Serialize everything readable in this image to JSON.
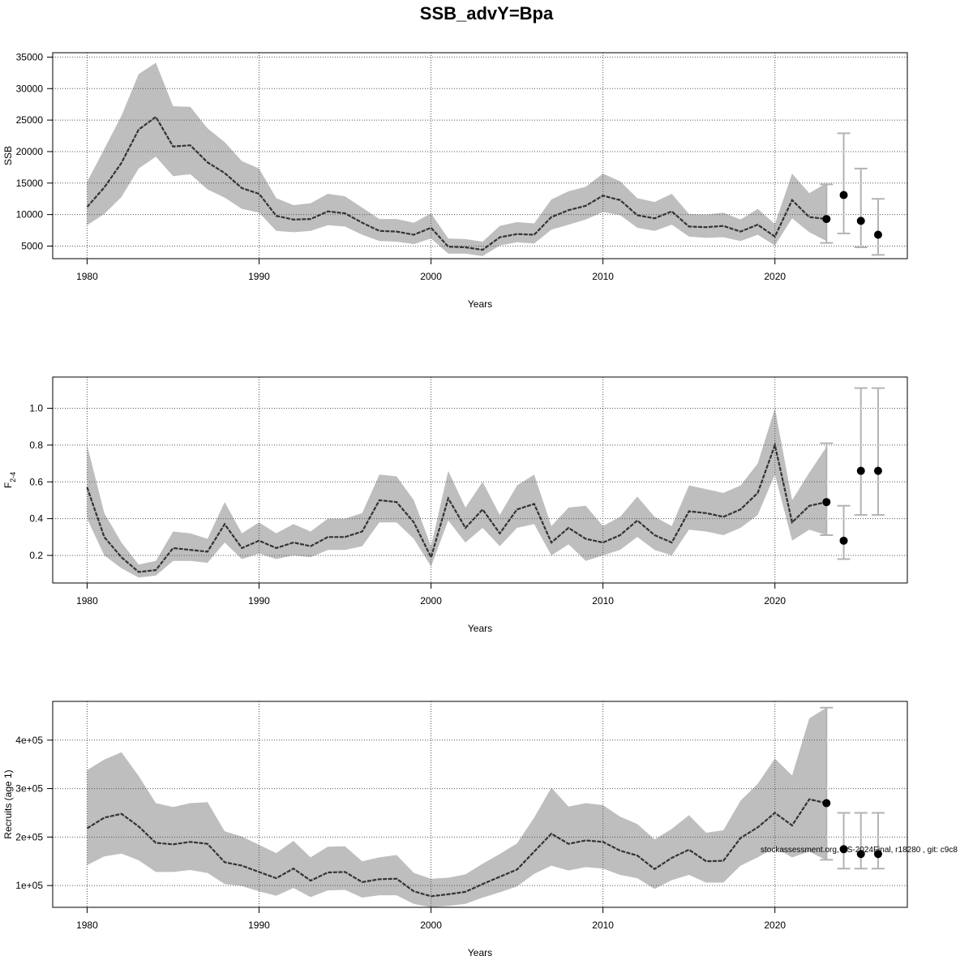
{
  "page_title": "SSB_advY=Bpa",
  "footnote": "stockassessment.org, NS-2024Final, r18280 , git: c9c8",
  "colors": {
    "band": "#bebebe",
    "line": "#333333",
    "errorbar": "#b3b3b3",
    "point": "#000000",
    "grid": "#555555"
  },
  "chart_data": [
    {
      "type": "line",
      "title": "SSB_advY=Bpa",
      "xlabel": "Years",
      "ylabel": "SSB",
      "xlim": [
        1978,
        2027.7
      ],
      "ylim": [
        3000,
        35700
      ],
      "xticks": [
        1980,
        1990,
        2000,
        2010,
        2020
      ],
      "xtick_labels": [
        "1980",
        "1990",
        "2000",
        "2010",
        "2020"
      ],
      "yticks": [
        5000,
        10000,
        15000,
        20000,
        25000,
        30000,
        35000
      ],
      "ytick_labels": [
        "5000",
        "10000",
        "15000",
        "20000",
        "25000",
        "30000",
        "35000"
      ],
      "grid": true,
      "series": [
        {
          "x": [
            1980,
            1981,
            1982,
            1983,
            1984,
            1985,
            1986,
            1987,
            1988,
            1989,
            1990,
            1991,
            1992,
            1993,
            1994,
            1995,
            1996,
            1997,
            1998,
            1999,
            2000,
            2001,
            2002,
            2003,
            2004,
            2005,
            2006,
            2007,
            2008,
            2009,
            2010,
            2011,
            2012,
            2013,
            2014,
            2015,
            2016,
            2017,
            2018,
            2019,
            2020,
            2021,
            2022,
            2023
          ],
          "y": [
            11200,
            14300,
            18200,
            23500,
            25500,
            20800,
            21000,
            18300,
            16600,
            14200,
            13300,
            9800,
            9200,
            9300,
            10500,
            10200,
            8700,
            7400,
            7300,
            6800,
            7900,
            4900,
            4800,
            4400,
            6400,
            6900,
            6800,
            9600,
            10700,
            11400,
            13000,
            12300,
            9900,
            9400,
            10500,
            8100,
            8000,
            8200,
            7300,
            8400,
            6500,
            12300,
            9600,
            9300
          ],
          "lower": [
            8300,
            10100,
            12800,
            17300,
            19200,
            16100,
            16400,
            14000,
            12700,
            10900,
            10300,
            7400,
            7200,
            7400,
            8300,
            8100,
            6800,
            5800,
            5700,
            5300,
            6200,
            3800,
            3800,
            3400,
            5100,
            5600,
            5400,
            7600,
            8400,
            9200,
            10400,
            9900,
            7900,
            7400,
            8400,
            6500,
            6300,
            6400,
            5800,
            6800,
            5100,
            9400,
            7200,
            5800
          ],
          "upper": [
            15200,
            20400,
            25700,
            32300,
            34100,
            27200,
            27100,
            23700,
            21500,
            18500,
            17300,
            12600,
            11500,
            11800,
            13300,
            12900,
            11100,
            9300,
            9300,
            8700,
            10200,
            6200,
            6100,
            5700,
            8200,
            8800,
            8600,
            12400,
            13700,
            14400,
            16500,
            15300,
            12600,
            12000,
            13300,
            10100,
            10000,
            10300,
            9200,
            10900,
            8500,
            16500,
            13400,
            15000
          ]
        }
      ],
      "forecast": {
        "x": [
          2024,
          2025,
          2026
        ],
        "y": [
          13100,
          9000,
          6800
        ],
        "lower": [
          7000,
          4800,
          3600
        ],
        "upper": [
          22900,
          17300,
          12500
        ]
      },
      "final_interval": {
        "x": 2023,
        "lower": 5500,
        "upper": 14800
      }
    },
    {
      "type": "line",
      "xlabel": "Years",
      "ylabel": "F",
      "ylabel_sub": "2-4",
      "xlim": [
        1978,
        2027.7
      ],
      "ylim": [
        0.05,
        1.17
      ],
      "xticks": [
        1980,
        1990,
        2000,
        2010,
        2020
      ],
      "xtick_labels": [
        "1980",
        "1990",
        "2000",
        "2010",
        "2020"
      ],
      "yticks": [
        0.2,
        0.4,
        0.6,
        0.8,
        1.0
      ],
      "ytick_labels": [
        "0.2",
        "0.4",
        "0.6",
        "0.8",
        "1.0"
      ],
      "grid": true,
      "series": [
        {
          "x": [
            1980,
            1981,
            1982,
            1983,
            1984,
            1985,
            1986,
            1987,
            1988,
            1989,
            1990,
            1991,
            1992,
            1993,
            1994,
            1995,
            1996,
            1997,
            1998,
            1999,
            2000,
            2001,
            2002,
            2003,
            2004,
            2005,
            2006,
            2007,
            2008,
            2009,
            2010,
            2011,
            2012,
            2013,
            2014,
            2015,
            2016,
            2017,
            2018,
            2019,
            2020,
            2021,
            2022,
            2023
          ],
          "y": [
            0.57,
            0.3,
            0.19,
            0.11,
            0.12,
            0.24,
            0.23,
            0.22,
            0.37,
            0.24,
            0.28,
            0.24,
            0.27,
            0.25,
            0.3,
            0.3,
            0.33,
            0.5,
            0.49,
            0.38,
            0.19,
            0.51,
            0.35,
            0.45,
            0.32,
            0.45,
            0.48,
            0.27,
            0.35,
            0.29,
            0.27,
            0.31,
            0.39,
            0.31,
            0.27,
            0.44,
            0.43,
            0.41,
            0.45,
            0.54,
            0.8,
            0.38,
            0.47,
            0.49
          ],
          "lower": [
            0.4,
            0.2,
            0.13,
            0.08,
            0.09,
            0.17,
            0.17,
            0.16,
            0.27,
            0.18,
            0.21,
            0.18,
            0.2,
            0.19,
            0.23,
            0.23,
            0.25,
            0.38,
            0.38,
            0.29,
            0.14,
            0.39,
            0.27,
            0.35,
            0.25,
            0.35,
            0.37,
            0.2,
            0.26,
            0.17,
            0.2,
            0.23,
            0.3,
            0.23,
            0.2,
            0.34,
            0.33,
            0.31,
            0.35,
            0.42,
            0.64,
            0.28,
            0.34,
            0.31
          ],
          "upper": [
            0.8,
            0.43,
            0.27,
            0.15,
            0.17,
            0.33,
            0.32,
            0.29,
            0.49,
            0.32,
            0.38,
            0.32,
            0.37,
            0.33,
            0.4,
            0.4,
            0.43,
            0.64,
            0.63,
            0.5,
            0.25,
            0.66,
            0.46,
            0.6,
            0.42,
            0.58,
            0.64,
            0.36,
            0.46,
            0.47,
            0.36,
            0.41,
            0.52,
            0.41,
            0.36,
            0.58,
            0.56,
            0.54,
            0.58,
            0.7,
            1.0,
            0.5,
            0.65,
            0.79
          ]
        }
      ],
      "forecast": {
        "x": [
          2024,
          2025,
          2026
        ],
        "y": [
          0.28,
          0.66,
          0.66
        ],
        "lower": [
          0.18,
          0.42,
          0.42
        ],
        "upper": [
          0.47,
          1.11,
          1.11
        ]
      },
      "final_interval": {
        "x": 2023,
        "lower": 0.31,
        "upper": 0.81
      }
    },
    {
      "type": "line",
      "xlabel": "Years",
      "ylabel": "Recruits (age 1)",
      "xlim": [
        1978,
        2027.7
      ],
      "ylim": [
        55000,
        480000
      ],
      "xticks": [
        1980,
        1990,
        2000,
        2010,
        2020
      ],
      "xtick_labels": [
        "1980",
        "1990",
        "2000",
        "2010",
        "2020"
      ],
      "yticks": [
        100000,
        200000,
        300000,
        400000
      ],
      "ytick_labels": [
        "1e+05",
        "2e+05",
        "3e+05",
        "4e+05"
      ],
      "grid": true,
      "series": [
        {
          "x": [
            1980,
            1981,
            1982,
            1983,
            1984,
            1985,
            1986,
            1987,
            1988,
            1989,
            1990,
            1991,
            1992,
            1993,
            1994,
            1995,
            1996,
            1997,
            1998,
            1999,
            2000,
            2001,
            2002,
            2003,
            2004,
            2005,
            2006,
            2007,
            2008,
            2009,
            2010,
            2011,
            2012,
            2013,
            2014,
            2015,
            2016,
            2017,
            2018,
            2019,
            2020,
            2021,
            2022,
            2023
          ],
          "y": [
            218000,
            240000,
            248000,
            222000,
            188000,
            185000,
            190000,
            186000,
            148000,
            141000,
            128000,
            115000,
            135000,
            110000,
            127000,
            128000,
            107000,
            113000,
            114000,
            88000,
            78000,
            82000,
            87000,
            103000,
            118000,
            133000,
            170000,
            207000,
            186000,
            193000,
            190000,
            172000,
            162000,
            134000,
            157000,
            174000,
            150000,
            151000,
            198000,
            220000,
            250000,
            224000,
            278000,
            270000
          ],
          "lower": [
            142000,
            160000,
            166000,
            152000,
            128000,
            128000,
            132000,
            126000,
            103000,
            99000,
            88000,
            79000,
            95000,
            76000,
            90000,
            91000,
            75000,
            80000,
            80000,
            62000,
            55000,
            58000,
            62000,
            75000,
            86000,
            98000,
            124000,
            141000,
            131000,
            138000,
            135000,
            122000,
            115000,
            93000,
            111000,
            122000,
            106000,
            106000,
            141000,
            158000,
            178000,
            158000,
            170000,
            152000
          ],
          "upper": [
            338000,
            360000,
            375000,
            326000,
            270000,
            262000,
            270000,
            272000,
            212000,
            201000,
            184000,
            167000,
            192000,
            158000,
            180000,
            181000,
            150000,
            158000,
            163000,
            126000,
            114000,
            116000,
            123000,
            145000,
            165000,
            187000,
            240000,
            302000,
            263000,
            270000,
            266000,
            242000,
            227000,
            195000,
            217000,
            245000,
            209000,
            214000,
            275000,
            310000,
            362000,
            327000,
            445000,
            467000
          ]
        }
      ],
      "forecast": {
        "x": [
          2024,
          2025,
          2026
        ],
        "y": [
          175000,
          165000,
          165000
        ],
        "lower": [
          135000,
          135000,
          135000
        ],
        "upper": [
          250000,
          250000,
          250000
        ]
      },
      "final_interval": {
        "x": 2023,
        "lower": 153000,
        "upper": 467000
      }
    }
  ]
}
